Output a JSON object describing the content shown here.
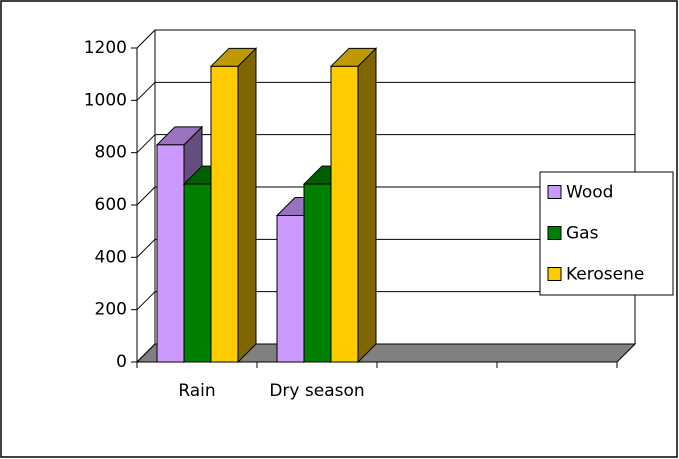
{
  "chart_data": {
    "type": "bar3d",
    "categories": [
      "Rain",
      "Dry season",
      null,
      null
    ],
    "series": [
      {
        "name": "Wood",
        "color": "#cc99ff",
        "values": [
          830,
          560,
          null,
          null
        ]
      },
      {
        "name": "Gas",
        "color": "#008000",
        "values": [
          680,
          680,
          null,
          null
        ]
      },
      {
        "name": "Kerosene",
        "color": "#ffcc00",
        "values": [
          1130,
          1130,
          null,
          null
        ]
      }
    ],
    "ylim": [
      0,
      1200
    ],
    "yticks": [
      0,
      200,
      400,
      600,
      800,
      1000,
      1200
    ],
    "grid": true,
    "legend": "right",
    "floor_color": "#808080"
  }
}
